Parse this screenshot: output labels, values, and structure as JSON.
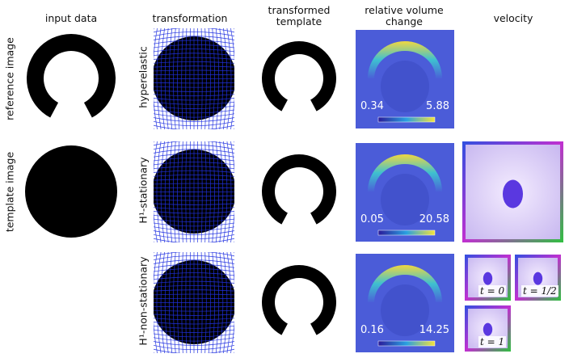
{
  "columns": [
    "input data",
    "transformation",
    "transformed template",
    "relative volume change",
    "velocity"
  ],
  "rows": [
    "reference image",
    "template image"
  ],
  "methods": [
    {
      "label": "hyperelastic",
      "volume_min": "0.34",
      "volume_max": "5.88"
    },
    {
      "label": "H¹-stationary",
      "volume_min": "0.05",
      "volume_max": "20.58"
    },
    {
      "label": "H¹-non-stationary",
      "volume_min": "0.16",
      "volume_max": "14.25"
    }
  ],
  "time_labels": [
    "t = 0",
    "t = 1/2",
    "t = 1"
  ]
}
